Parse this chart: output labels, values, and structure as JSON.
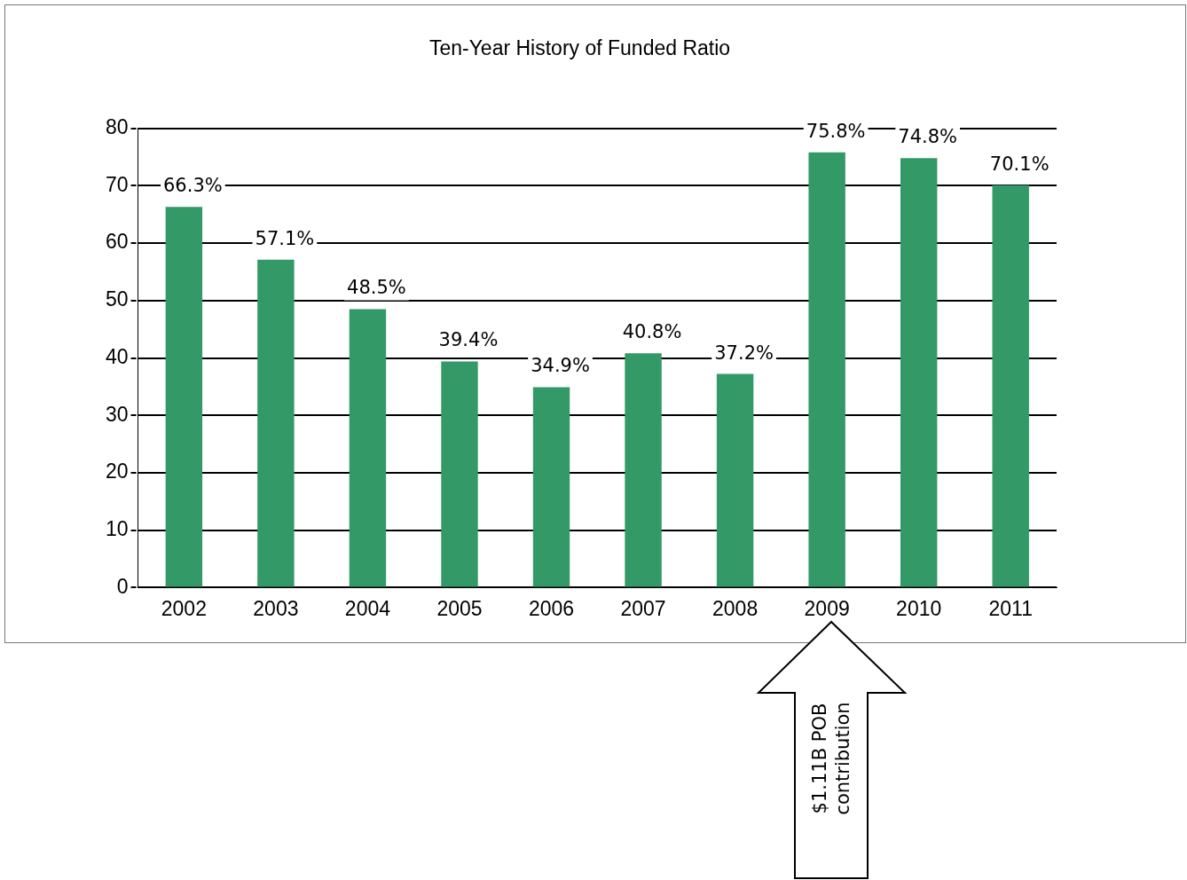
{
  "chart_data": {
    "type": "bar",
    "title": "Ten-Year History of Funded Ratio",
    "categories": [
      "2002",
      "2003",
      "2004",
      "2005",
      "2006",
      "2007",
      "2008",
      "2009",
      "2010",
      "2011"
    ],
    "values": [
      66.3,
      57.1,
      48.5,
      39.4,
      34.9,
      40.8,
      37.2,
      75.8,
      74.8,
      70.1
    ],
    "value_labels": [
      "66.3%",
      "57.1%",
      "48.5%",
      "39.4%",
      "34.9%",
      "40.8%",
      "37.2%",
      "75.8%",
      "74.8%",
      "70.1%"
    ],
    "color": "#339966",
    "ylim": [
      0,
      80
    ],
    "yticks": [
      0,
      10,
      20,
      30,
      40,
      50,
      60,
      70,
      80
    ],
    "grid": "y",
    "line_style": "dashed",
    "legend": false,
    "annotations": [
      "$1.11B POB contribution"
    ]
  }
}
